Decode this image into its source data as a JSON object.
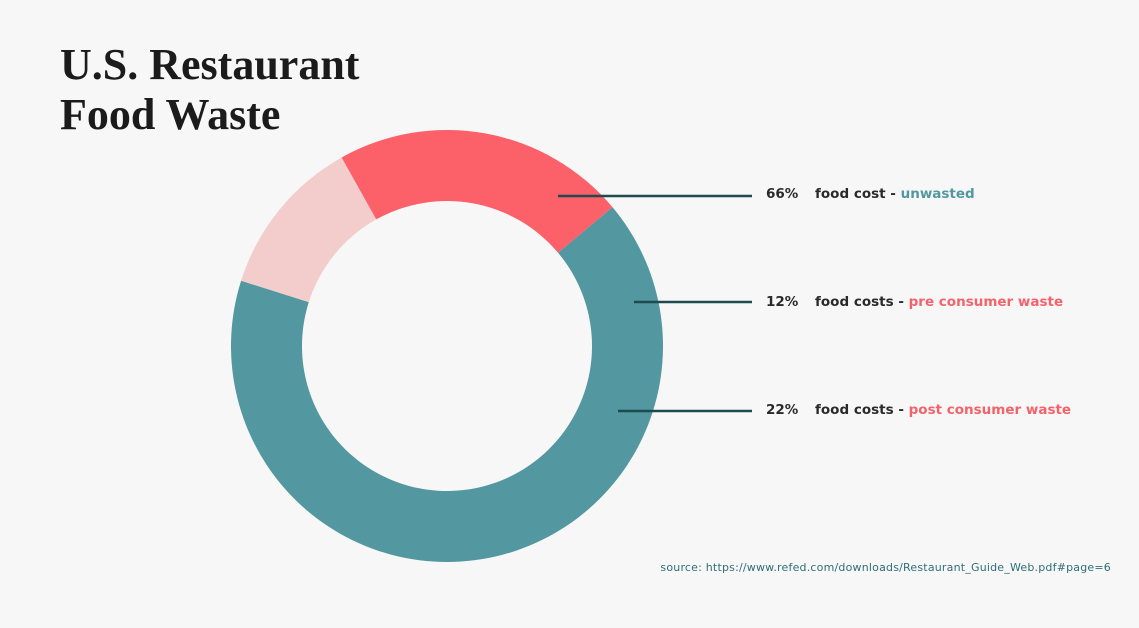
{
  "title": {
    "line1": "U.S. Restaurant",
    "line2": "Food Waste"
  },
  "chart_data": {
    "type": "pie",
    "variant": "donut",
    "slices": [
      {
        "pct_label": "66%",
        "value": 66,
        "label": "food cost -",
        "category": "unwasted",
        "color": "#5398a0"
      },
      {
        "pct_label": "12%",
        "value": 12,
        "label": "food costs -",
        "category": "pre consumer waste",
        "color": "#f3cdcc"
      },
      {
        "pct_label": "22%",
        "value": 22,
        "label": "food costs -",
        "category": "post consumer waste",
        "color": "#fc6068"
      }
    ],
    "category_colors": [
      "#5398a0",
      "#f4636b",
      "#f4636b"
    ],
    "leader_color": "#1f4a4f"
  },
  "source": "source: https://www.refed.com/downloads/Restaurant_Guide_Web.pdf#page=6"
}
